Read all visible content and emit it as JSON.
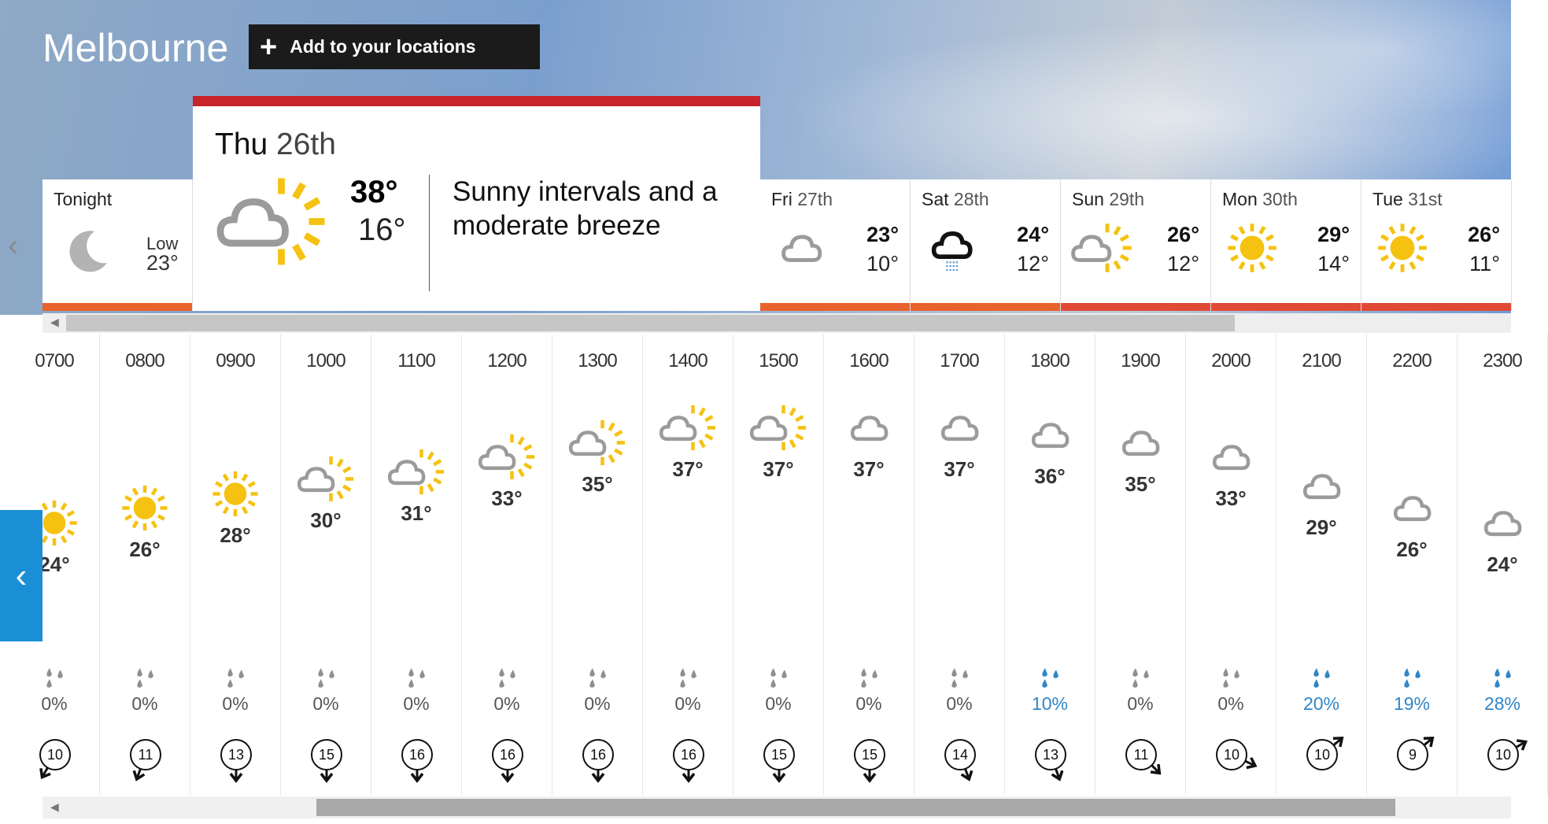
{
  "location": {
    "name": "Melbourne",
    "add_label": "Add to your locations",
    "add_icon": "plus-icon"
  },
  "colors": {
    "selected_bar": "#c8232b",
    "warm_bar": "#e8622c",
    "hot_bar": "#e04a35",
    "rain_blue": "#2f86c8",
    "button_blue": "#1a8fd6"
  },
  "tonight": {
    "label": "Tonight",
    "low_label": "Low",
    "low": "23°",
    "icon": "moon-icon"
  },
  "selected_day": {
    "dow": "Thu",
    "date": "26th",
    "high": "38°",
    "low": "16°",
    "description": "Sunny intervals and a moderate breeze",
    "icon": "sunny-intervals-icon"
  },
  "days": [
    {
      "dow": "Fri",
      "date": "27th",
      "high": "23°",
      "low": "10°",
      "icon": "cloud",
      "bar": "#e8622c"
    },
    {
      "dow": "Sat",
      "date": "28th",
      "high": "24°",
      "low": "12°",
      "icon": "rain",
      "bar": "#e8622c"
    },
    {
      "dow": "Sun",
      "date": "29th",
      "high": "26°",
      "low": "12°",
      "icon": "partly",
      "bar": "#e04a35"
    },
    {
      "dow": "Mon",
      "date": "30th",
      "high": "29°",
      "low": "14°",
      "icon": "sun",
      "bar": "#e04a35"
    },
    {
      "dow": "Tue",
      "date": "31st",
      "high": "26°",
      "low": "11°",
      "icon": "sun",
      "bar": "#e04a35"
    }
  ],
  "hourly": [
    {
      "time": "0700",
      "temp": 24,
      "icon": "sun",
      "rain": "0%",
      "wind": 10,
      "wind_dir_deg": 210
    },
    {
      "time": "0800",
      "temp": 26,
      "icon": "sun",
      "rain": "0%",
      "wind": 11,
      "wind_dir_deg": 200
    },
    {
      "time": "0900",
      "temp": 28,
      "icon": "sun",
      "rain": "0%",
      "wind": 13,
      "wind_dir_deg": 180
    },
    {
      "time": "1000",
      "temp": 30,
      "icon": "partly",
      "rain": "0%",
      "wind": 15,
      "wind_dir_deg": 180
    },
    {
      "time": "1100",
      "temp": 31,
      "icon": "partly",
      "rain": "0%",
      "wind": 16,
      "wind_dir_deg": 180
    },
    {
      "time": "1200",
      "temp": 33,
      "icon": "partly",
      "rain": "0%",
      "wind": 16,
      "wind_dir_deg": 180
    },
    {
      "time": "1300",
      "temp": 35,
      "icon": "partly",
      "rain": "0%",
      "wind": 16,
      "wind_dir_deg": 180
    },
    {
      "time": "1400",
      "temp": 37,
      "icon": "partly",
      "rain": "0%",
      "wind": 16,
      "wind_dir_deg": 180
    },
    {
      "time": "1500",
      "temp": 37,
      "icon": "partly",
      "rain": "0%",
      "wind": 15,
      "wind_dir_deg": 180
    },
    {
      "time": "1600",
      "temp": 37,
      "icon": "cloud",
      "rain": "0%",
      "wind": 15,
      "wind_dir_deg": 180
    },
    {
      "time": "1700",
      "temp": 37,
      "icon": "cloud",
      "rain": "0%",
      "wind": 14,
      "wind_dir_deg": 160
    },
    {
      "time": "1800",
      "temp": 36,
      "icon": "cloud",
      "rain": "10%",
      "wind": 13,
      "wind_dir_deg": 160
    },
    {
      "time": "1900",
      "temp": 35,
      "icon": "cloud",
      "rain": "0%",
      "wind": 11,
      "wind_dir_deg": 135
    },
    {
      "time": "2000",
      "temp": 33,
      "icon": "cloud",
      "rain": "0%",
      "wind": 10,
      "wind_dir_deg": 115
    },
    {
      "time": "2100",
      "temp": 29,
      "icon": "cloud",
      "rain": "20%",
      "wind": 10,
      "wind_dir_deg": 50
    },
    {
      "time": "2200",
      "temp": 26,
      "icon": "cloud",
      "rain": "19%",
      "wind": 9,
      "wind_dir_deg": 50
    },
    {
      "time": "2300",
      "temp": 24,
      "icon": "cloud",
      "rain": "28%",
      "wind": 10,
      "wind_dir_deg": 60
    }
  ],
  "degree": "°"
}
